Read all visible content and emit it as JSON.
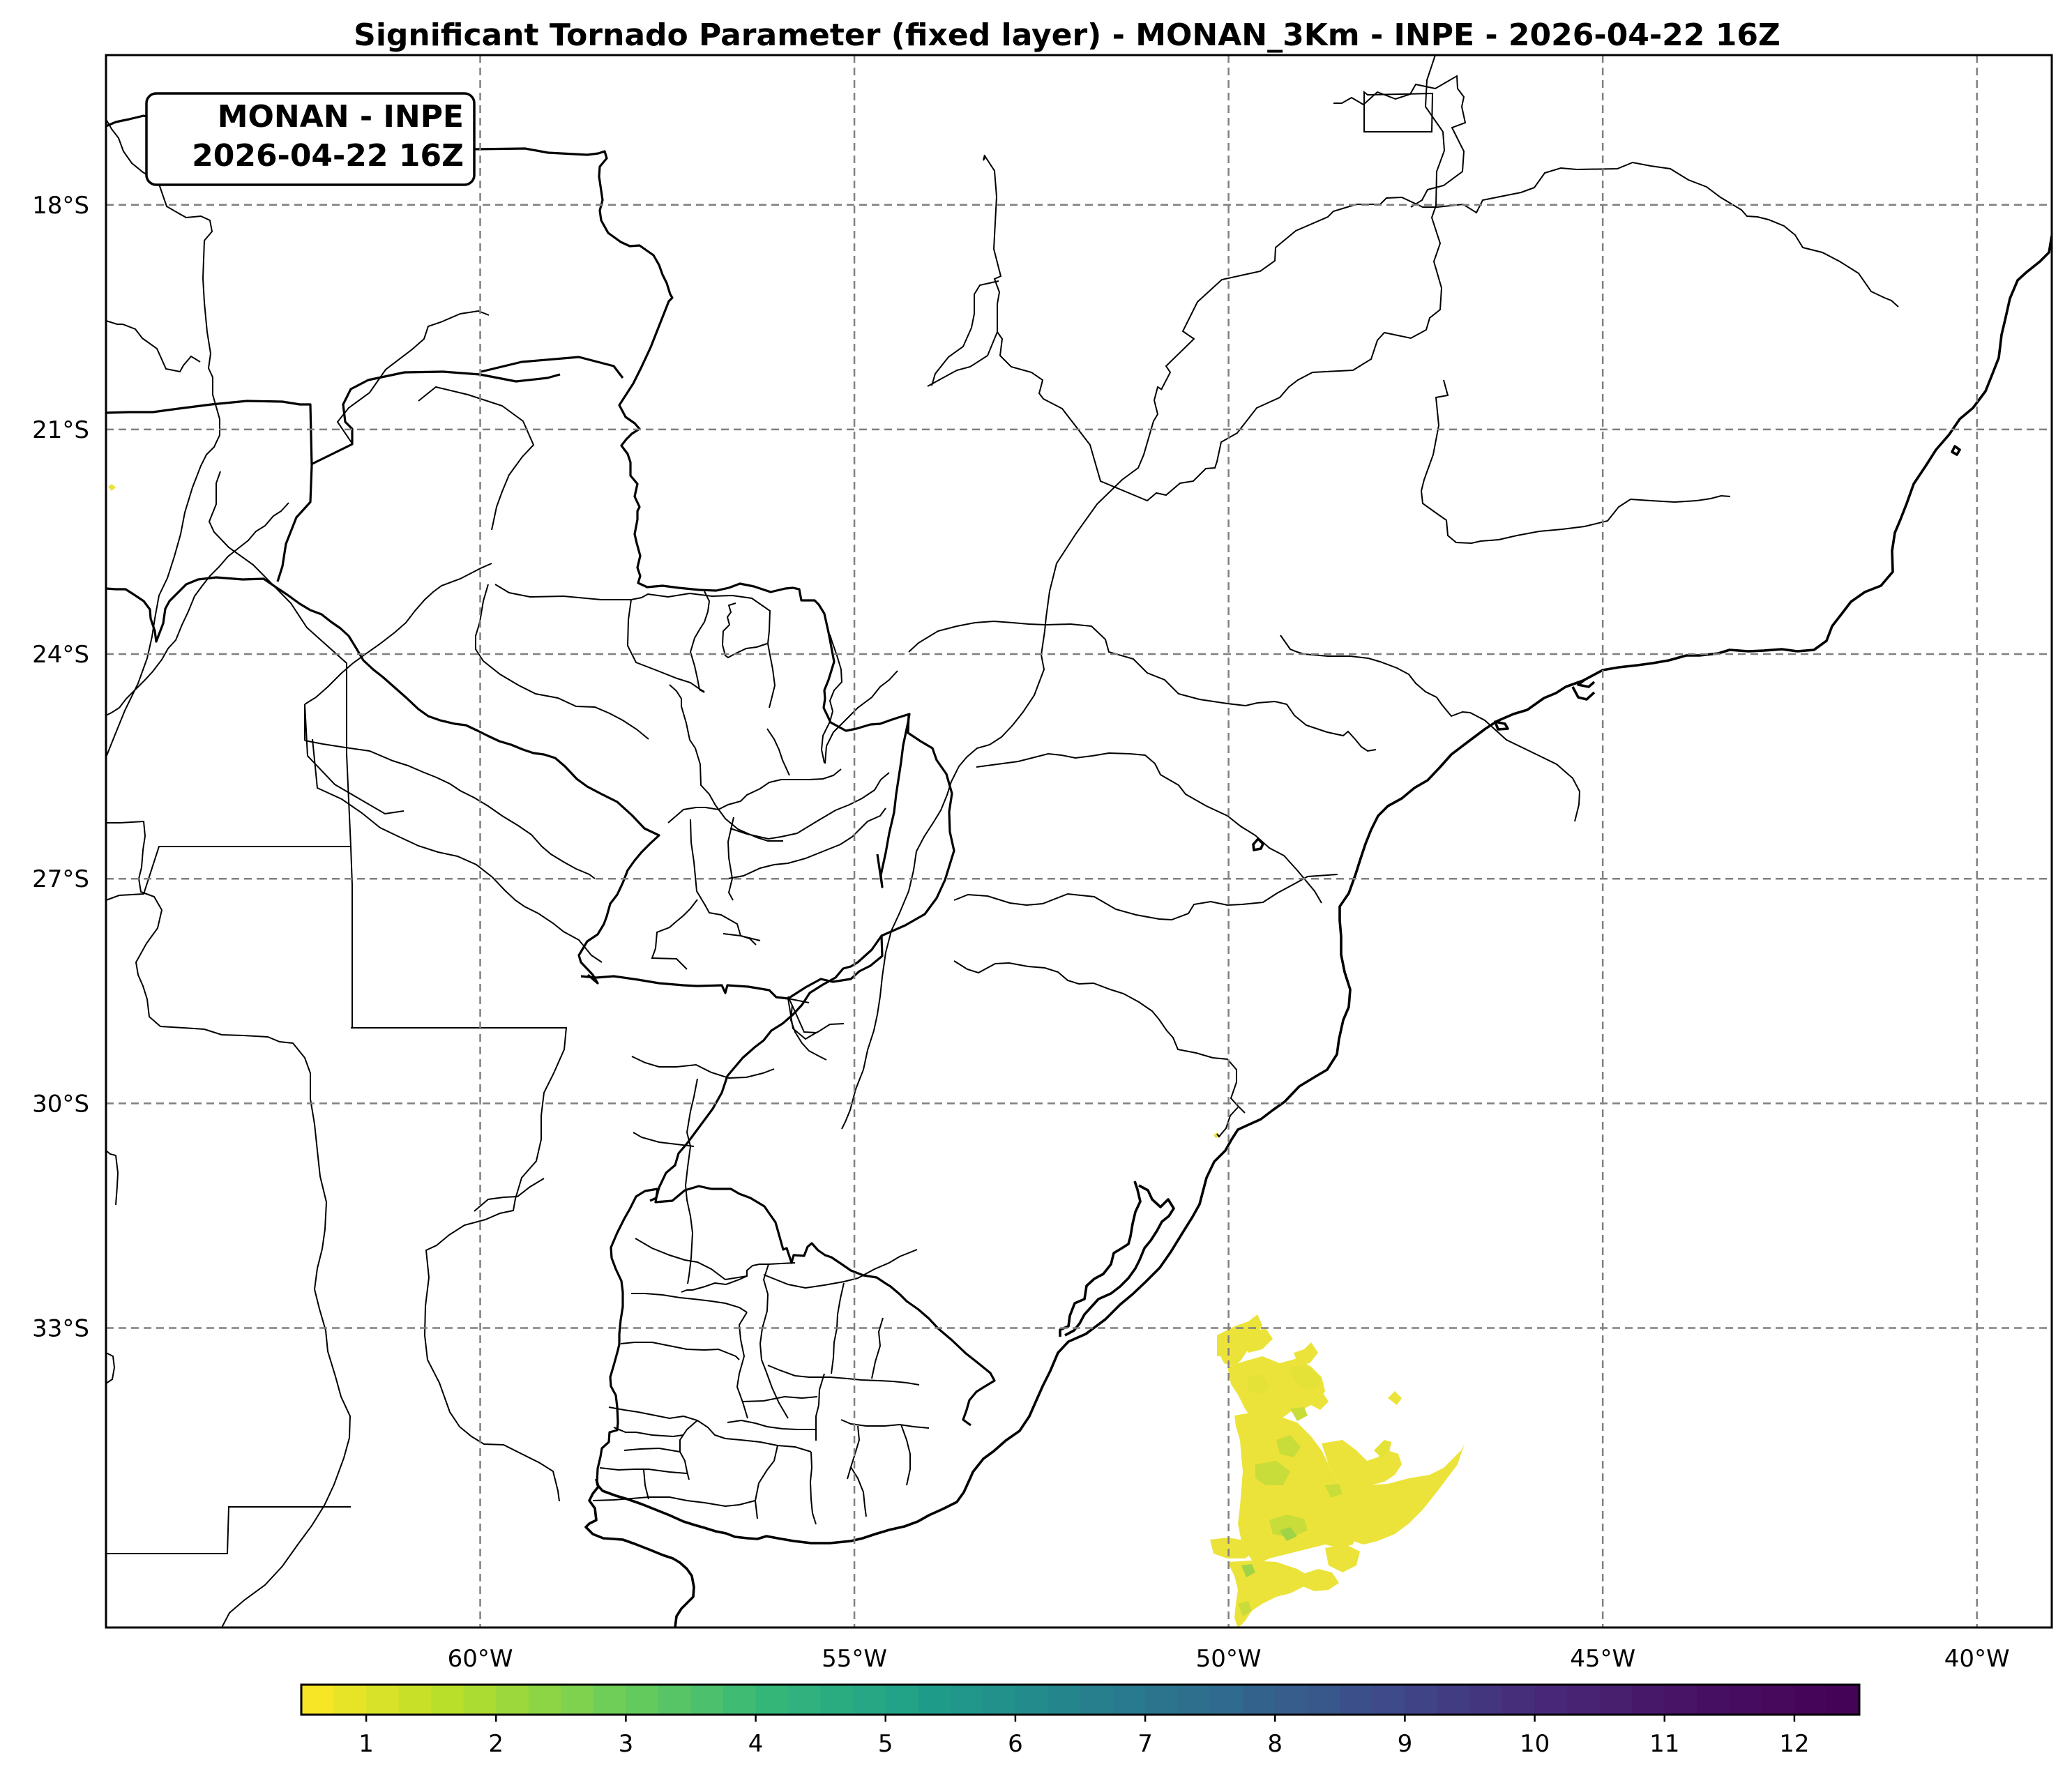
{
  "title": "Significant Tornado Parameter (fixed layer) - MONAN_3Km - INPE - 2026-04-22 16Z",
  "info_box": {
    "line1": "MONAN - INPE",
    "line2": "2026-04-22 16Z"
  },
  "map": {
    "lon_range": [
      -65,
      -39
    ],
    "lat_range": [
      -37,
      -16
    ],
    "lon_ticks": [
      {
        "value": -60,
        "label": "60°W"
      },
      {
        "value": -55,
        "label": "55°W"
      },
      {
        "value": -50,
        "label": "50°W"
      },
      {
        "value": -45,
        "label": "45°W"
      },
      {
        "value": -40,
        "label": "40°W"
      }
    ],
    "lat_ticks": [
      {
        "value": -18,
        "label": "18°S"
      },
      {
        "value": -21,
        "label": "21°S"
      },
      {
        "value": -24,
        "label": "24°S"
      },
      {
        "value": -27,
        "label": "27°S"
      },
      {
        "value": -30,
        "label": "30°S"
      },
      {
        "value": -33,
        "label": "33°S"
      }
    ],
    "gridlines": true
  },
  "colorbar": {
    "colormap": "viridis_r",
    "range": [
      0.5,
      12.5
    ],
    "ticks": [
      "1",
      "2",
      "3",
      "4",
      "5",
      "6",
      "7",
      "8",
      "9",
      "10",
      "11",
      "12"
    ],
    "levels": 48
  },
  "field_region": "Atlantic Ocean off southern Brazil, approx. 50.3°W–46.9°W, 32°S–37°S, values mostly 1–3"
}
